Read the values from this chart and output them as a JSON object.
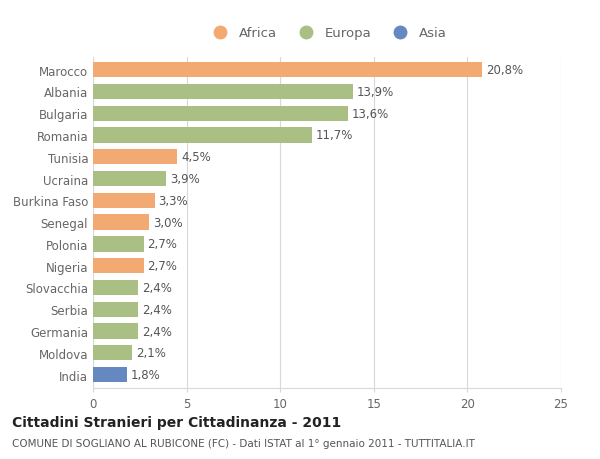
{
  "countries": [
    "Marocco",
    "Albania",
    "Bulgaria",
    "Romania",
    "Tunisia",
    "Ucraina",
    "Burkina Faso",
    "Senegal",
    "Polonia",
    "Nigeria",
    "Slovacchia",
    "Serbia",
    "Germania",
    "Moldova",
    "India"
  ],
  "values": [
    20.8,
    13.9,
    13.6,
    11.7,
    4.5,
    3.9,
    3.3,
    3.0,
    2.7,
    2.7,
    2.4,
    2.4,
    2.4,
    2.1,
    1.8
  ],
  "labels": [
    "20,8%",
    "13,9%",
    "13,6%",
    "11,7%",
    "4,5%",
    "3,9%",
    "3,3%",
    "3,0%",
    "2,7%",
    "2,7%",
    "2,4%",
    "2,4%",
    "2,4%",
    "2,1%",
    "1,8%"
  ],
  "continent": [
    "Africa",
    "Europa",
    "Europa",
    "Europa",
    "Africa",
    "Europa",
    "Africa",
    "Africa",
    "Europa",
    "Africa",
    "Europa",
    "Europa",
    "Europa",
    "Europa",
    "Asia"
  ],
  "colors": {
    "Africa": "#F2AA72",
    "Europa": "#AABF84",
    "Asia": "#6688C0"
  },
  "title": "Cittadini Stranieri per Cittadinanza - 2011",
  "subtitle": "COMUNE DI SOGLIANO AL RUBICONE (FC) - Dati ISTAT al 1° gennaio 2011 - TUTTITALIA.IT",
  "xlim": [
    0,
    25
  ],
  "xticks": [
    0,
    5,
    10,
    15,
    20,
    25
  ],
  "background_color": "#ffffff",
  "grid_color": "#d8d8d8",
  "bar_height": 0.7,
  "title_fontsize": 10,
  "subtitle_fontsize": 7.5,
  "tick_fontsize": 8.5,
  "label_fontsize": 8.5,
  "legend_fontsize": 9.5
}
